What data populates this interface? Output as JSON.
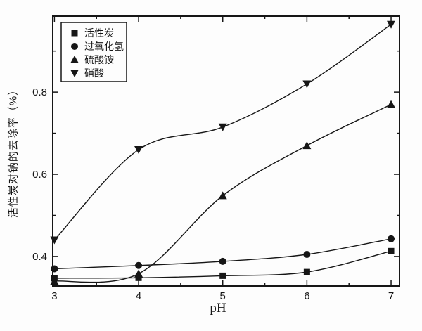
{
  "figure": {
    "background": "#fdfdfd",
    "ink_color": "#161616"
  },
  "chart_data": {
    "type": "line",
    "title": "",
    "xlabel": "pH",
    "ylabel": "活性炭对钠的去除率（%）",
    "x": [
      3,
      4,
      5,
      6,
      7
    ],
    "series": [
      {
        "name": "活性炭",
        "marker": "square",
        "values": [
          0.347,
          0.348,
          0.353,
          0.362,
          0.413
        ]
      },
      {
        "name": "过氧化氢",
        "marker": "circle",
        "values": [
          0.37,
          0.378,
          0.388,
          0.405,
          0.443
        ]
      },
      {
        "name": "硫酸铵",
        "marker": "triangle-up",
        "values": [
          0.34,
          0.358,
          0.548,
          0.67,
          0.77
        ]
      },
      {
        "name": "硝酸",
        "marker": "triangle-down",
        "values": [
          0.44,
          0.66,
          0.715,
          0.82,
          0.965
        ]
      }
    ],
    "xlim": [
      2.98,
      7.1
    ],
    "ylim": [
      0.328,
      0.985
    ],
    "x_major_ticks": [
      3,
      4,
      5,
      6,
      7
    ],
    "x_minor_ticks": [
      3.5,
      4.5,
      5.5,
      6.5
    ],
    "x_tick_labels": [
      "3",
      "4",
      "5",
      "6",
      "7"
    ],
    "y_major_ticks": [
      0.4,
      0.6,
      0.8
    ],
    "y_minor_ticks": [
      0.5,
      0.7,
      0.9
    ],
    "y_tick_labels": [
      "0.4",
      "0.6",
      "0.8"
    ],
    "grid": false,
    "legend_position": "upper-left"
  }
}
